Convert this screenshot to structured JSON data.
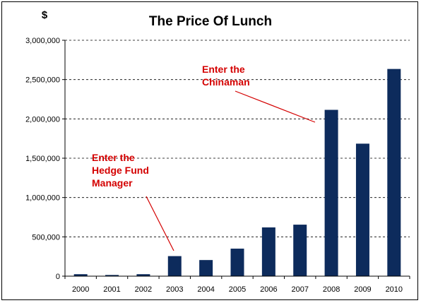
{
  "chart_data": {
    "type": "bar",
    "title": "The Price Of Lunch",
    "ylabel": "$",
    "xlabel": "",
    "categories": [
      "2000",
      "2001",
      "2002",
      "2003",
      "2004",
      "2005",
      "2006",
      "2007",
      "2008",
      "2009",
      "2010"
    ],
    "values": [
      25000,
      15000,
      25000,
      255000,
      205000,
      350000,
      620000,
      655000,
      2115000,
      1685000,
      2635000
    ],
    "ylim": [
      0,
      3000000
    ],
    "yticks": [
      0,
      500000,
      1000000,
      1500000,
      2000000,
      2500000,
      3000000
    ],
    "ytick_labels": [
      "0",
      "500,000",
      "1,000,000",
      "1,500,000",
      "2,000,000",
      "2,500,000",
      "3,000,000"
    ],
    "grid": "horizontal dashed",
    "bar_color": "#0d2b5c",
    "annotations": [
      {
        "lines": [
          "Enter the",
          "Chinaman"
        ],
        "target_category": "2008",
        "color": "#d40000"
      },
      {
        "lines": [
          "Enter the",
          "Hedge Fund",
          "Manager"
        ],
        "target_category": "2003",
        "color": "#d40000"
      }
    ]
  }
}
